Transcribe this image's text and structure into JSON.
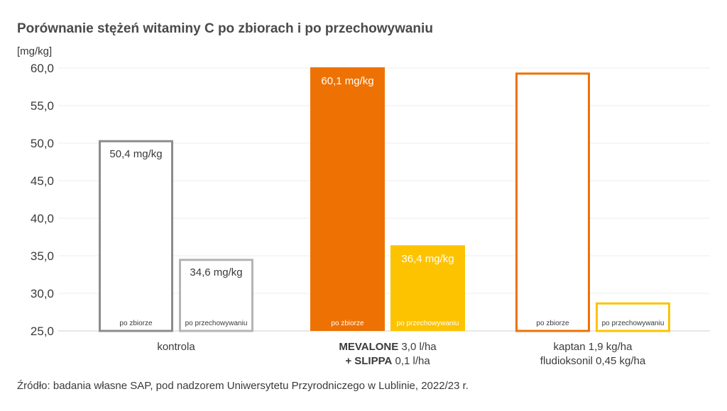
{
  "title": "Porównanie stężeń witaminy C po zbiorach i po przechowywaniu",
  "unit": "[mg/kg]",
  "source": "Źródło: badania własne SAP, pod nadzorem Uniwersytetu Przyrodniczego w Lublinie, 2022/23 r.",
  "categories": [
    {
      "lines": [
        {
          "bold": "",
          "rest": "kontrola"
        }
      ]
    },
    {
      "lines": [
        {
          "bold": "MEVALONE",
          "rest": " 3,0 l/ha"
        },
        {
          "bold": "+ SLIPPA",
          "rest": " 0,1 l/ha"
        }
      ]
    },
    {
      "lines": [
        {
          "bold": "",
          "rest": "kaptan 1,9 kg/ha"
        },
        {
          "bold": "",
          "rest": "fludioksonil 0,45 kg/ha"
        }
      ]
    }
  ],
  "chart_data": {
    "type": "bar",
    "title": "Porównanie stężeń witaminy C po zbiorach i po przechowywaniu",
    "ylabel": "[mg/kg]",
    "ylim": [
      25,
      60
    ],
    "yticks": [
      "25,0",
      "30,0",
      "35,0",
      "40,0",
      "45,0",
      "50,0",
      "55,0",
      "60,0"
    ],
    "categories": [
      "kontrola",
      "MEVALONE 3,0 l/ha + SLIPPA 0,1 l/ha",
      "kaptan 1,9 kg/ha fludioksonil 0,45 kg/ha"
    ],
    "series": [
      {
        "name": "po zbiorze",
        "values": [
          50.4,
          60.1,
          59.4
        ],
        "labels": [
          "50,4 mg/kg",
          "60,1 mg/kg",
          ""
        ]
      },
      {
        "name": "po przechowywaniu",
        "values": [
          34.6,
          36.4,
          28.8
        ],
        "labels": [
          "34,6 mg/kg",
          "36,4 mg/kg",
          ""
        ]
      }
    ],
    "bar_styles": [
      [
        {
          "fill": "#ffffff",
          "stroke": "#8c8c8c",
          "text": "#3a3a3a"
        },
        {
          "fill": "#ffffff",
          "stroke": "#b4b4b4",
          "text": "#3a3a3a"
        }
      ],
      [
        {
          "fill": "#ee7203",
          "stroke": "#ee7203",
          "text": "#ffffff"
        },
        {
          "fill": "#fdc300",
          "stroke": "#fdc300",
          "text": "#ffffff"
        }
      ],
      [
        {
          "fill": "#ffffff",
          "stroke": "#ee7203",
          "text": "#3a3a3a"
        },
        {
          "fill": "#ffffff",
          "stroke": "#fdc300",
          "text": "#3a3a3a"
        }
      ]
    ],
    "grid": true
  }
}
